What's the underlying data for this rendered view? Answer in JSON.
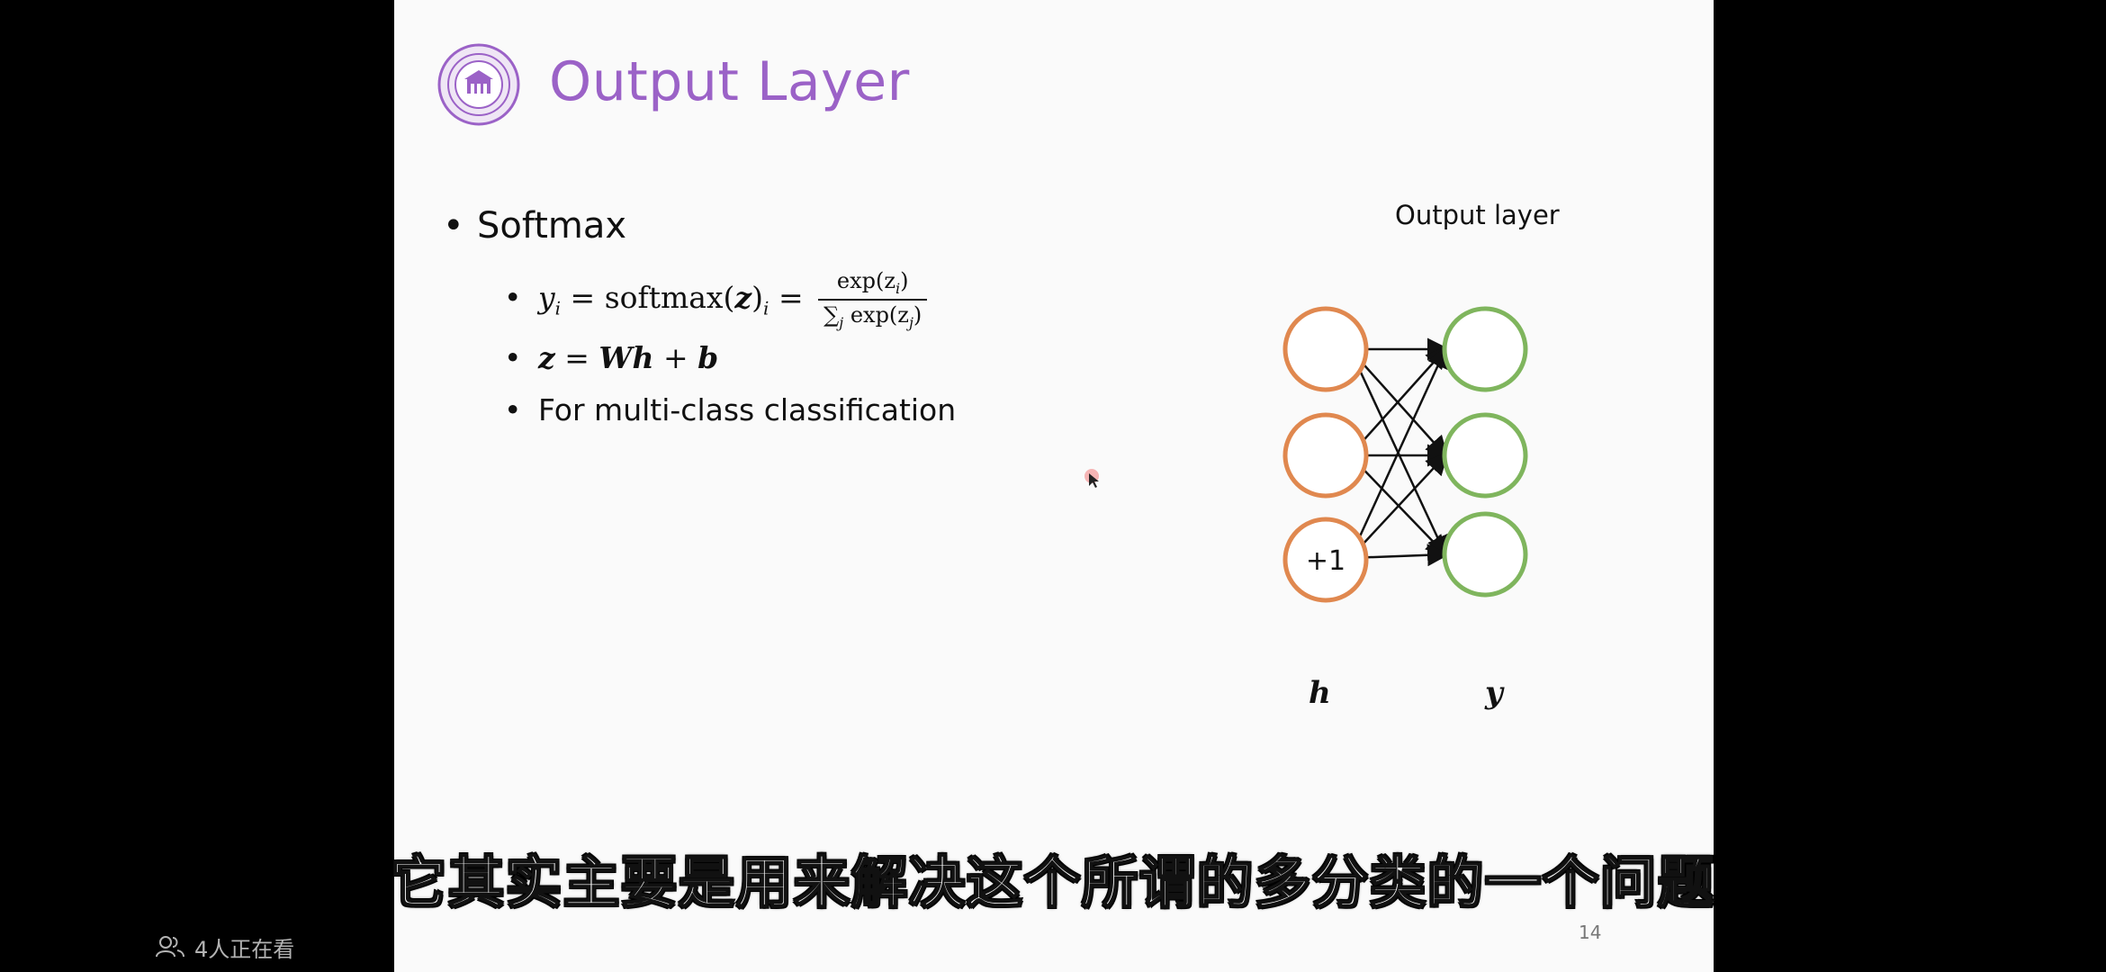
{
  "slide": {
    "title": "Output Layer",
    "bullet_main": "Softmax",
    "formula_lhs": "y",
    "formula_lhs_sub": "i",
    "formula_mid": " = softmax(",
    "formula_z": "z",
    "formula_rhs_sub": "i",
    "formula_eq": " = ",
    "formula_num": "exp(z",
    "formula_num_sub": "i",
    "formula_num_close": ")",
    "formula_den": "∑",
    "formula_den_sub": "j",
    "formula_den_body": " exp(z",
    "formula_den_sub2": "j",
    "formula_den_close": ")",
    "formula2_z": "z",
    "formula2_eq": " = ",
    "formula2_Wh": "Wh",
    "formula2_plus": " + ",
    "formula2_b": "b",
    "bullet_sub3": "For multi-class classification",
    "page_number": "14"
  },
  "diagram": {
    "label": "Output layer",
    "bias_label": "+1",
    "h_label": "h",
    "y_label": "y",
    "hidden_color": "#e0884f",
    "output_color": "#7fb55d"
  },
  "overlay": {
    "subtitle": "它其实主要是用来解决这个所谓的多分类的一个问题",
    "viewers_text": "4人正在看"
  }
}
